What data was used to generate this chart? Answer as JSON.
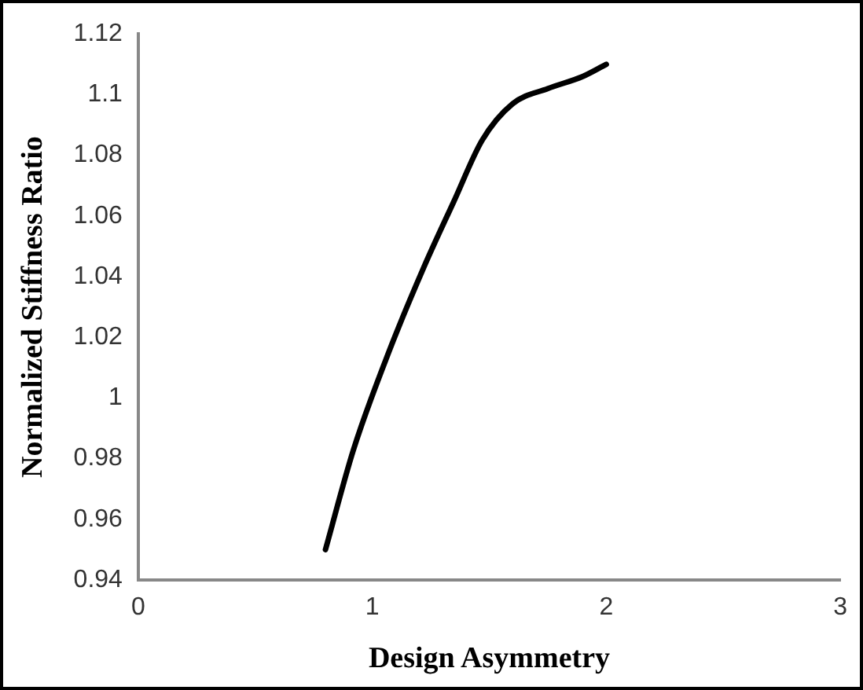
{
  "chart_data": {
    "type": "line",
    "xlabel": "Design Asymmetry",
    "ylabel": "Normalized Stiffness Ratio",
    "series": [
      {
        "color": "#000000",
        "x": [
          0.8,
          0.92,
          1.07,
          1.22,
          1.35,
          1.47,
          1.6,
          1.75,
          1.9,
          2.0
        ],
        "values": [
          0.95,
          0.983,
          1.015,
          1.043,
          1.065,
          1.085,
          1.097,
          1.102,
          1.106,
          1.11
        ]
      }
    ],
    "xlim": [
      0,
      3
    ],
    "xticks": [
      0,
      1,
      2,
      3
    ],
    "ylim": [
      0.94,
      1.12
    ],
    "yticks": [
      0.94,
      0.96,
      0.98,
      {
        "value": 1,
        "label": "1"
      },
      1.02,
      1.04,
      1.06,
      1.08,
      {
        "value": 1.1,
        "label": "1.1"
      },
      1.12
    ],
    "grid": false,
    "legend": false,
    "marker": "none",
    "line_style": "solid"
  }
}
